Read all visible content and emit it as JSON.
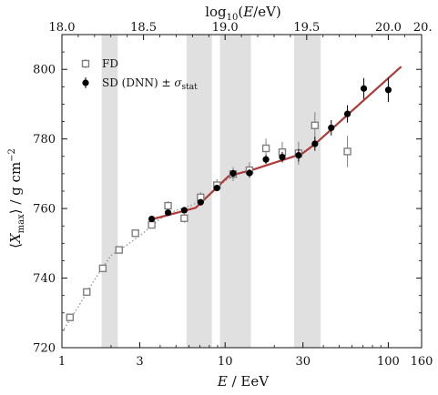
{
  "chart_data": {
    "type": "scatter",
    "xlabel_bottom": "E / EeV",
    "xlabel_top": "log10(E/eV)",
    "ylabel": "⟨Xmax⟩ / g cm⁻²",
    "xscale": "log",
    "xlim": [
      1,
      160
    ],
    "ylim": [
      720,
      810
    ],
    "x_ticks_bottom": [
      {
        "value": 1,
        "label": "1"
      },
      {
        "value": 3,
        "label": "3"
      },
      {
        "value": 10,
        "label": "10"
      },
      {
        "value": 30,
        "label": "30"
      },
      {
        "value": 100,
        "label": "100"
      },
      {
        "value": 160,
        "label": "160"
      }
    ],
    "x_ticks_top": [
      {
        "value": 18.0,
        "label": "18.0"
      },
      {
        "value": 18.5,
        "label": "18.5"
      },
      {
        "value": 19.0,
        "label": "19.0"
      },
      {
        "value": 19.5,
        "label": "19.5"
      },
      {
        "value": 20.0,
        "label": "20.0"
      },
      {
        "value": 20.2,
        "label": "20."
      }
    ],
    "y_ticks": [
      {
        "value": 720,
        "label": "720"
      },
      {
        "value": 740,
        "label": "740"
      },
      {
        "value": 760,
        "label": "760"
      },
      {
        "value": 780,
        "label": "780"
      },
      {
        "value": 800,
        "label": "800"
      }
    ],
    "shaded_bands": [
      [
        1.75,
        2.2
      ],
      [
        5.8,
        8.3
      ],
      [
        9.3,
        14.4
      ],
      [
        26.5,
        38.5
      ]
    ],
    "legend": {
      "placement": "top-left",
      "entries": [
        {
          "marker": "open-square",
          "label": "FD"
        },
        {
          "marker": "filled-circle",
          "label": "SD (DNN) ± σstat"
        }
      ]
    },
    "series": [
      {
        "name": "FD",
        "marker": "open-square",
        "color": "#7f7f7f",
        "points": [
          {
            "x": 1.12,
            "y": 728.7,
            "err": 0.8
          },
          {
            "x": 1.42,
            "y": 736.0,
            "err": 0.8
          },
          {
            "x": 1.78,
            "y": 742.8,
            "err": 0.8
          },
          {
            "x": 2.24,
            "y": 748.1,
            "err": 0.9
          },
          {
            "x": 2.82,
            "y": 752.9,
            "err": 1.0
          },
          {
            "x": 3.55,
            "y": 755.3,
            "err": 1.0
          },
          {
            "x": 4.47,
            "y": 760.8,
            "err": 1.3
          },
          {
            "x": 5.62,
            "y": 757.2,
            "err": 1.3
          },
          {
            "x": 7.08,
            "y": 763.2,
            "err": 1.5
          },
          {
            "x": 8.91,
            "y": 766.7,
            "err": 1.7
          },
          {
            "x": 11.2,
            "y": 769.9,
            "err": 2.0
          },
          {
            "x": 14.1,
            "y": 771.0,
            "err": 2.3
          },
          {
            "x": 17.8,
            "y": 777.3,
            "err": 2.8
          },
          {
            "x": 22.4,
            "y": 776.2,
            "err": 3.0
          },
          {
            "x": 28.2,
            "y": 775.9,
            "err": 3.3
          },
          {
            "x": 35.5,
            "y": 783.9,
            "err": 3.8
          },
          {
            "x": 56.2,
            "y": 776.4,
            "err": 4.5
          }
        ]
      },
      {
        "name": "SD (DNN) ± σstat",
        "marker": "filled-circle",
        "color": "#000000",
        "points": [
          {
            "x": 3.55,
            "y": 757.0,
            "err": 0.6
          },
          {
            "x": 4.47,
            "y": 758.8,
            "err": 0.6
          },
          {
            "x": 5.62,
            "y": 759.5,
            "err": 0.7
          },
          {
            "x": 7.08,
            "y": 761.8,
            "err": 0.8
          },
          {
            "x": 8.91,
            "y": 765.9,
            "err": 0.9
          },
          {
            "x": 11.2,
            "y": 770.1,
            "err": 1.0
          },
          {
            "x": 14.1,
            "y": 770.2,
            "err": 1.1
          },
          {
            "x": 17.8,
            "y": 774.1,
            "err": 1.3
          },
          {
            "x": 22.4,
            "y": 774.8,
            "err": 1.5
          },
          {
            "x": 28.2,
            "y": 775.3,
            "err": 1.8
          },
          {
            "x": 35.5,
            "y": 778.6,
            "err": 2.0
          },
          {
            "x": 44.7,
            "y": 783.2,
            "err": 2.2
          },
          {
            "x": 56.2,
            "y": 787.2,
            "err": 2.5
          },
          {
            "x": 70.8,
            "y": 794.5,
            "err": 3.0
          },
          {
            "x": 100,
            "y": 794.1,
            "err": 3.5
          }
        ]
      }
    ],
    "fit_line": {
      "color": "#b03a3a",
      "points": [
        {
          "x": 3.55,
          "y": 756.9
        },
        {
          "x": 6.6,
          "y": 760.2
        },
        {
          "x": 10.5,
          "y": 769.3
        },
        {
          "x": 15.1,
          "y": 771.3
        },
        {
          "x": 29.5,
          "y": 775.7
        },
        {
          "x": 35.5,
          "y": 778.5
        },
        {
          "x": 120,
          "y": 800.8
        }
      ]
    },
    "dotted_line": {
      "color": "#888888",
      "points": [
        {
          "x": 1.0,
          "y": 724.5
        },
        {
          "x": 1.25,
          "y": 731.5
        },
        {
          "x": 1.58,
          "y": 739.5
        },
        {
          "x": 2.0,
          "y": 746.5
        },
        {
          "x": 2.5,
          "y": 749.5
        },
        {
          "x": 3.16,
          "y": 753.0
        },
        {
          "x": 3.98,
          "y": 757.0
        },
        {
          "x": 5.0,
          "y": 759.5
        },
        {
          "x": 6.3,
          "y": 761.0
        },
        {
          "x": 7.9,
          "y": 763.5
        },
        {
          "x": 10.0,
          "y": 768.0
        },
        {
          "x": 12.6,
          "y": 770.5
        }
      ]
    }
  }
}
